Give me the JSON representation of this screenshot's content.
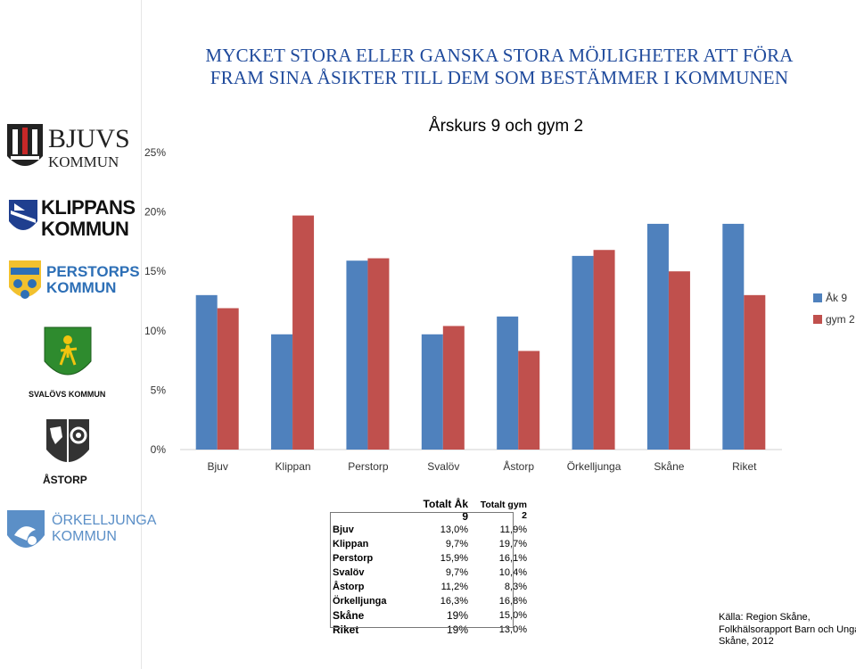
{
  "page": {
    "title_line1": "MYCKET STORA ELLER GANSKA STORA MÖJLIGHETER ATT FÖRA",
    "title_line2": "FRAM SINA ÅSIKTER TILL DEM SOM BESTÄMMER I KOMMUNEN",
    "source_lines": [
      "Källa: Region Skåne,",
      "Folkhälsorapport Barn och Unga i",
      "Skåne, 2012"
    ]
  },
  "logos": [
    {
      "name": "Bjuvs kommun",
      "text_main": "BJUVS",
      "text_sub": "KOMMUN",
      "icon": "bjuv-coat-of-arms-icon"
    },
    {
      "name": "Klippans kommun",
      "text_main": "KLIPPANS",
      "text_sub": "KOMMUN",
      "icon": "klippan-coat-of-arms-icon"
    },
    {
      "name": "Perstorps kommun",
      "text_main": "PERSTORPS",
      "text_sub": "KOMMUN",
      "icon": "perstorp-coat-of-arms-icon"
    },
    {
      "name": "Svalövs kommun",
      "text_main": "SVALÖVS KOMMUN",
      "icon": "svalov-coat-of-arms-icon"
    },
    {
      "name": "Åstorp",
      "text_main": "ÅSTORP",
      "icon": "astorp-coat-of-arms-icon"
    },
    {
      "name": "Örkelljunga kommun",
      "text_main": "ÖRKELLJUNGA",
      "text_sub": "KOMMUN",
      "icon": "orkelljunga-coat-of-arms-icon"
    }
  ],
  "chart_data": {
    "type": "bar",
    "title": "Årskurs 9 och gym  2",
    "categories": [
      "Bjuv",
      "Klippan",
      "Perstorp",
      "Svalöv",
      "Åstorp",
      "Örkelljunga",
      "Skåne",
      "Riket"
    ],
    "series": [
      {
        "name": "Åk 9",
        "color": "#4f81bd",
        "values": [
          13.0,
          9.7,
          15.9,
          9.7,
          11.2,
          16.3,
          19,
          19
        ]
      },
      {
        "name": "gym 2",
        "color": "#c0504d",
        "values": [
          11.9,
          19.7,
          16.1,
          10.4,
          8.3,
          16.8,
          15.0,
          13.0
        ]
      }
    ],
    "ylim": [
      0,
      25
    ],
    "yticks": [
      "0%",
      "5%",
      "10%",
      "15%",
      "20%",
      "25%"
    ],
    "ytick_values": [
      0,
      5,
      10,
      15,
      20,
      25
    ],
    "grid": false,
    "legend_position": "right"
  },
  "table": {
    "headers": [
      "Totalt Åk 9",
      "Totalt gym 2"
    ],
    "rows": [
      {
        "name": "Bjuv",
        "ak9": "13,0%",
        "gym2": "11,9%"
      },
      {
        "name": "Klippan",
        "ak9": "9,7%",
        "gym2": "19,7%"
      },
      {
        "name": "Perstorp",
        "ak9": "15,9%",
        "gym2": "16,1%"
      },
      {
        "name": "Svalöv",
        "ak9": "9,7%",
        "gym2": "10,4%"
      },
      {
        "name": "Åstorp",
        "ak9": "11,2%",
        "gym2": "8,3%"
      },
      {
        "name": "Örkelljunga",
        "ak9": "16,3%",
        "gym2": "16,8%"
      },
      {
        "name": "Skåne",
        "ak9": "19%",
        "gym2": "15,0%"
      },
      {
        "name": "Riket",
        "ak9": "19%",
        "gym2": "13,0%"
      }
    ]
  }
}
